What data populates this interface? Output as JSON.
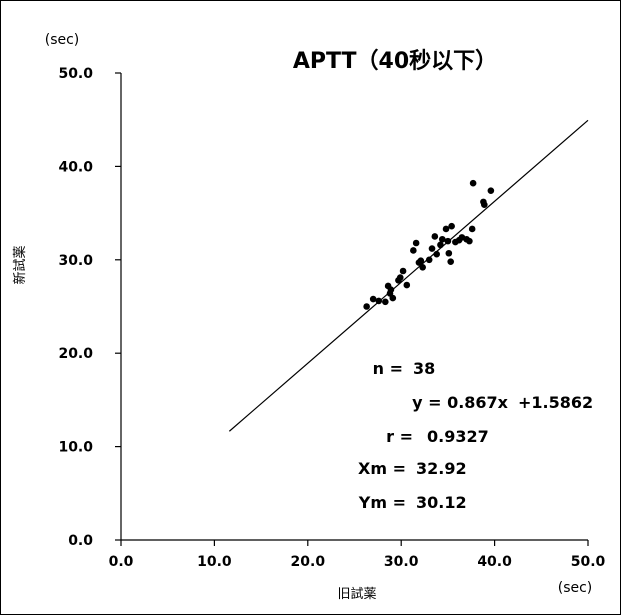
{
  "chart_data": {
    "type": "scatter",
    "title": "APTT（40秒以下）",
    "xlabel": "旧試薬",
    "ylabel": "新試薬",
    "x_unit": "(sec)",
    "y_unit": "(sec)",
    "xlim": [
      0,
      50
    ],
    "ylim": [
      0,
      50
    ],
    "xticks": [
      0,
      10,
      20,
      30,
      40,
      50
    ],
    "yticks": [
      0,
      10,
      20,
      30,
      40,
      50
    ],
    "xtick_labels": [
      "0.0",
      "10.0",
      "20.0",
      "30.0",
      "40.0",
      "50.0"
    ],
    "ytick_labels": [
      "0.0",
      "10.0",
      "20.0",
      "30.0",
      "40.0",
      "50.0"
    ],
    "grid": false,
    "points": [
      [
        26.3,
        25.0
      ],
      [
        27.0,
        25.8
      ],
      [
        27.6,
        25.6
      ],
      [
        28.3,
        25.5
      ],
      [
        28.6,
        27.2
      ],
      [
        28.8,
        26.4
      ],
      [
        28.9,
        26.8
      ],
      [
        29.1,
        25.9
      ],
      [
        29.7,
        27.8
      ],
      [
        29.9,
        28.1
      ],
      [
        30.2,
        28.8
      ],
      [
        30.6,
        27.3
      ],
      [
        31.3,
        31.0
      ],
      [
        31.6,
        31.8
      ],
      [
        31.9,
        29.7
      ],
      [
        32.1,
        29.9
      ],
      [
        32.3,
        29.2
      ],
      [
        33.0,
        30.0
      ],
      [
        33.3,
        31.2
      ],
      [
        33.6,
        32.5
      ],
      [
        33.8,
        30.6
      ],
      [
        34.2,
        31.6
      ],
      [
        34.4,
        32.2
      ],
      [
        34.8,
        33.3
      ],
      [
        35.0,
        32.0
      ],
      [
        35.1,
        30.7
      ],
      [
        35.3,
        29.8
      ],
      [
        35.4,
        33.6
      ],
      [
        35.8,
        31.9
      ],
      [
        36.2,
        32.1
      ],
      [
        36.5,
        32.4
      ],
      [
        37.0,
        32.2
      ],
      [
        37.3,
        32.0
      ],
      [
        37.6,
        33.3
      ],
      [
        37.7,
        38.2
      ],
      [
        38.8,
        36.2
      ],
      [
        38.9,
        35.9
      ],
      [
        39.6,
        37.4
      ]
    ],
    "regression": {
      "slope": 0.867,
      "intercept": 1.5862,
      "x_range": [
        11.6,
        50
      ]
    },
    "annotations": {
      "n": {
        "label": "n =",
        "value": "38"
      },
      "equation": {
        "label": "y = 0.867x",
        "value": "+1.5862"
      },
      "r": {
        "label": "r =",
        "value": "0.9327"
      },
      "xm": {
        "label": "Xm =",
        "value": "32.92"
      },
      "ym": {
        "label": "Ym =",
        "value": "30.12"
      }
    }
  }
}
